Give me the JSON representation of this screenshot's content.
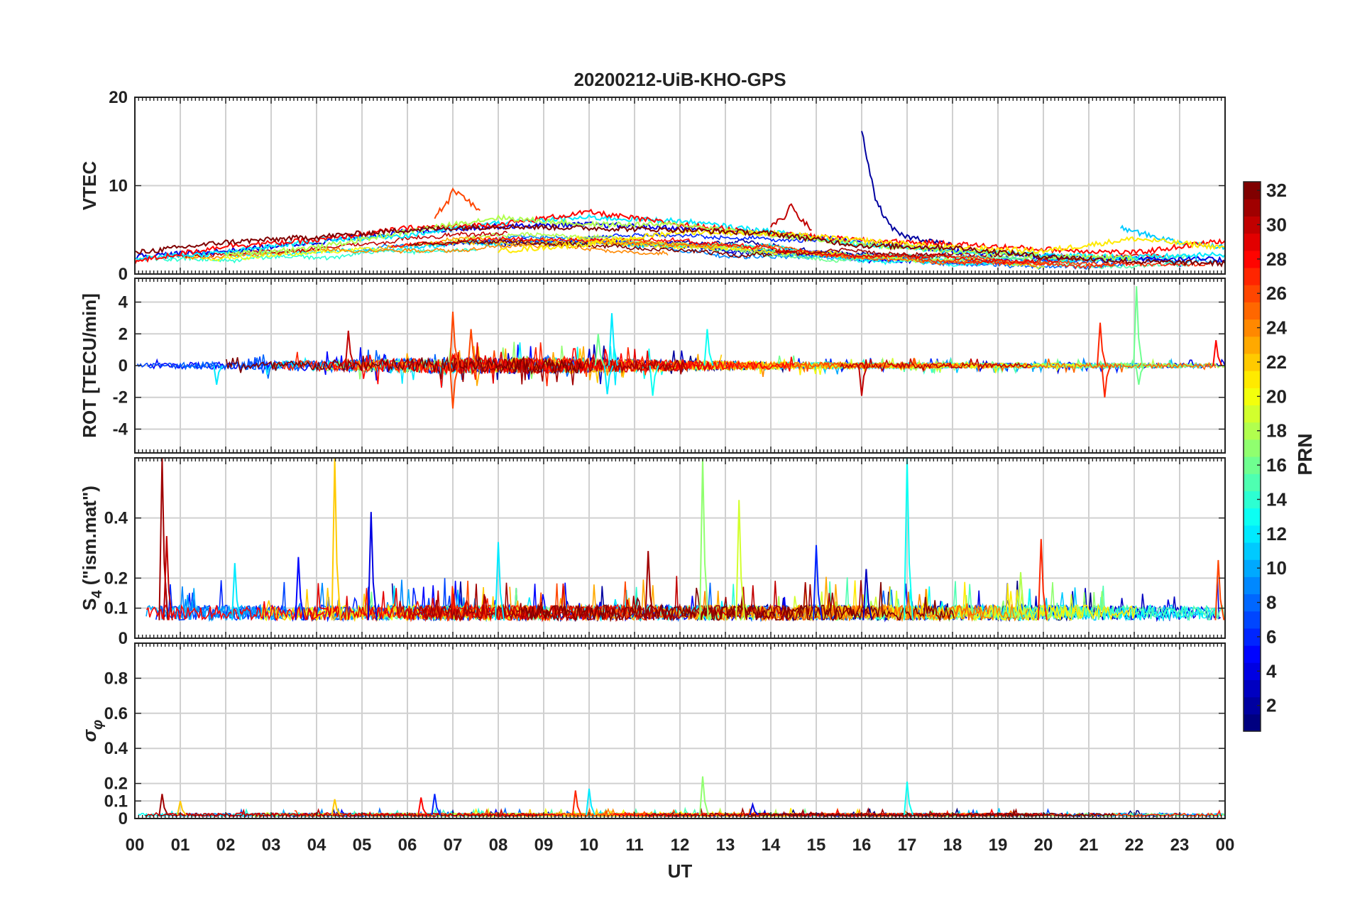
{
  "title": "20200212-UiB-KHO-GPS",
  "chart_data": {
    "type": "line",
    "title": "20200212-UiB-KHO-GPS",
    "xlabel": "UT",
    "x_tick_labels": [
      "00",
      "01",
      "02",
      "03",
      "04",
      "05",
      "06",
      "07",
      "08",
      "09",
      "10",
      "11",
      "12",
      "13",
      "14",
      "15",
      "16",
      "17",
      "18",
      "19",
      "20",
      "21",
      "22",
      "23",
      "00"
    ],
    "xlim_hours": [
      0,
      24
    ],
    "grid": true,
    "colorbar": {
      "label": "PRN",
      "range": [
        1,
        32
      ],
      "ticks": [
        2,
        4,
        6,
        8,
        10,
        12,
        14,
        16,
        18,
        20,
        22,
        24,
        26,
        28,
        30,
        32
      ],
      "colormap": "jet"
    },
    "panels": [
      {
        "ylabel": "VTEC",
        "ylim": [
          0,
          20
        ],
        "yticks": [
          0,
          10,
          20
        ],
        "ytick_labels": [
          "0",
          "10",
          "20"
        ],
        "baseline": 3,
        "noise": 0.6,
        "series": [
          {
            "prn": 2,
            "x": [
              16.0,
              16.3,
              16.6,
              16.8,
              17.0,
              17.5,
              18.0
            ],
            "y": [
              16.2,
              8.5,
              5.5,
              4.6,
              4.2,
              3.8,
              3.2
            ]
          },
          {
            "prn": 26,
            "x": [
              6.6,
              6.9,
              7.0,
              7.2,
              7.4,
              7.6
            ],
            "y": [
              6.5,
              8.2,
              9.5,
              8.8,
              8.0,
              7.2
            ]
          },
          {
            "prn": 30,
            "x": [
              14.0,
              14.3,
              14.45,
              14.6,
              14.9
            ],
            "y": [
              5.5,
              6.4,
              7.9,
              6.5,
              5.0
            ]
          },
          {
            "prn": 11,
            "x": [
              21.7,
              22.0,
              22.4,
              23.0,
              24.0
            ],
            "y": [
              5.2,
              4.8,
              4.3,
              3.6,
              3.1
            ]
          },
          {
            "prn": 4,
            "x": [
              0.0,
              2.0,
              4.0,
              6.0,
              8.0,
              10.0,
              12.0,
              14.0,
              16.0,
              18.0,
              20.0,
              22.0,
              24.0
            ],
            "y": [
              2.0,
              2.6,
              3.6,
              4.8,
              5.4,
              5.6,
              5.2,
              4.6,
              3.6,
              2.6,
              2.0,
              1.8,
              1.6
            ]
          },
          {
            "prn": 12,
            "x": [
              0.0,
              2.0,
              4.0,
              6.0,
              8.0,
              10.0,
              12.0,
              14.0,
              16.0,
              18.0,
              20.0,
              22.0,
              24.0
            ],
            "y": [
              1.8,
              2.4,
              3.8,
              4.4,
              5.8,
              6.4,
              6.0,
              4.8,
              3.4,
              2.6,
              2.2,
              1.9,
              2.2
            ]
          },
          {
            "prn": 28,
            "x": [
              0.0,
              2.0,
              4.0,
              6.0,
              8.0,
              10.0,
              12.0,
              14.0,
              16.0,
              18.0,
              20.0,
              22.0,
              24.0
            ],
            "y": [
              1.4,
              3.2,
              3.8,
              5.2,
              5.6,
              7.0,
              5.6,
              4.6,
              3.8,
              3.4,
              2.8,
              2.4,
              3.8
            ]
          },
          {
            "prn": 18,
            "x": [
              2.0,
              4.0,
              6.0,
              8.0,
              10.0,
              12.0,
              14.0,
              16.0,
              18.0,
              20.0,
              22.0
            ],
            "y": [
              2.2,
              3.0,
              4.8,
              6.4,
              5.6,
              5.6,
              4.4,
              3.4,
              2.6,
              2.0,
              1.8
            ]
          },
          {
            "prn": 21,
            "x": [
              8.0,
              10.0,
              12.0,
              14.0,
              16.0,
              18.0,
              20.0,
              22.0,
              24.0
            ],
            "y": [
              2.6,
              3.4,
              4.8,
              4.6,
              3.8,
              3.0,
              2.6,
              4.0,
              3.0
            ]
          },
          {
            "prn": 32,
            "x": [
              0.0,
              2.0,
              4.0,
              6.0,
              8.0,
              10.0,
              12.0,
              14.0,
              16.0,
              18.0,
              20.0,
              22.0,
              24.0
            ],
            "y": [
              2.4,
              3.6,
              4.2,
              5.0,
              5.4,
              5.2,
              5.0,
              4.6,
              3.2,
              3.0,
              2.0,
              1.4,
              1.2
            ]
          }
        ]
      },
      {
        "ylabel": "ROT [TECU/min]",
        "ylim": [
          -5.5,
          5.5
        ],
        "yticks": [
          -4,
          -2,
          0,
          2,
          4
        ],
        "ytick_labels": [
          "-4",
          "-2",
          "0",
          "2",
          "4"
        ],
        "baseline": 0,
        "noise": 0.35,
        "spikes": [
          {
            "prn": 26,
            "x": 7.0,
            "y": 3.4
          },
          {
            "prn": 26,
            "x": 7.0,
            "y": -2.7
          },
          {
            "prn": 16,
            "x": 22.05,
            "y": 5.0
          },
          {
            "prn": 16,
            "x": 22.1,
            "y": -1.2
          },
          {
            "prn": 27,
            "x": 21.25,
            "y": 2.7
          },
          {
            "prn": 27,
            "x": 21.35,
            "y": -2.0
          },
          {
            "prn": 12,
            "x": 10.5,
            "y": 3.3
          },
          {
            "prn": 12,
            "x": 10.4,
            "y": -1.8
          },
          {
            "prn": 13,
            "x": 12.6,
            "y": 2.3
          },
          {
            "prn": 13,
            "x": 11.4,
            "y": -1.9
          },
          {
            "prn": 30,
            "x": 4.7,
            "y": 2.2
          },
          {
            "prn": 30,
            "x": 16.0,
            "y": -1.9
          },
          {
            "prn": 16,
            "x": 10.2,
            "y": 2.0
          },
          {
            "prn": 12,
            "x": 1.8,
            "y": -1.2
          },
          {
            "prn": 26,
            "x": 7.4,
            "y": 2.3
          },
          {
            "prn": 28,
            "x": 23.8,
            "y": 1.6
          }
        ]
      },
      {
        "ylabel": "S4 (\"ism.mat\")",
        "ylim": [
          0,
          0.6
        ],
        "yticks": [
          0,
          0.1,
          0.2,
          0.4
        ],
        "ytick_labels": [
          "0",
          "0.1",
          "0.2",
          "0.4"
        ],
        "baseline": 0.06,
        "noise": 0.05,
        "spikes": [
          {
            "prn": 31,
            "x": 0.6,
            "y": 0.6
          },
          {
            "prn": 30,
            "x": 0.7,
            "y": 0.34
          },
          {
            "prn": 22,
            "x": 4.4,
            "y": 0.6
          },
          {
            "prn": 4,
            "x": 5.2,
            "y": 0.42
          },
          {
            "prn": 17,
            "x": 12.5,
            "y": 0.6
          },
          {
            "prn": 19,
            "x": 13.3,
            "y": 0.46
          },
          {
            "prn": 13,
            "x": 17.0,
            "y": 0.6
          },
          {
            "prn": 27,
            "x": 19.95,
            "y": 0.33
          },
          {
            "prn": 12,
            "x": 8.0,
            "y": 0.32
          },
          {
            "prn": 31,
            "x": 11.3,
            "y": 0.29
          },
          {
            "prn": 6,
            "x": 15.0,
            "y": 0.31
          },
          {
            "prn": 26,
            "x": 23.85,
            "y": 0.26
          },
          {
            "prn": 5,
            "x": 3.6,
            "y": 0.27
          },
          {
            "prn": 12,
            "x": 2.2,
            "y": 0.25
          },
          {
            "prn": 3,
            "x": 16.1,
            "y": 0.23
          },
          {
            "prn": 18,
            "x": 19.5,
            "y": 0.22
          }
        ]
      },
      {
        "ylabel": "σφ",
        "ylim": [
          0,
          1
        ],
        "yticks": [
          0,
          0.1,
          0.2,
          0.4,
          0.6,
          0.8
        ],
        "ytick_labels": [
          "0",
          "0.1",
          "0.2",
          "0.4",
          "0.6",
          "0.8"
        ],
        "baseline": 0.02,
        "noise": 0.018,
        "spikes": [
          {
            "prn": 31,
            "x": 0.6,
            "y": 0.14
          },
          {
            "prn": 22,
            "x": 4.4,
            "y": 0.11
          },
          {
            "prn": 17,
            "x": 12.5,
            "y": 0.24
          },
          {
            "prn": 13,
            "x": 17.0,
            "y": 0.21
          },
          {
            "prn": 12,
            "x": 10.0,
            "y": 0.17
          },
          {
            "prn": 27,
            "x": 9.7,
            "y": 0.16
          },
          {
            "prn": 6,
            "x": 6.6,
            "y": 0.14
          },
          {
            "prn": 28,
            "x": 6.3,
            "y": 0.12
          },
          {
            "prn": 22,
            "x": 1.0,
            "y": 0.1
          },
          {
            "prn": 4,
            "x": 13.6,
            "y": 0.08
          }
        ]
      }
    ]
  }
}
